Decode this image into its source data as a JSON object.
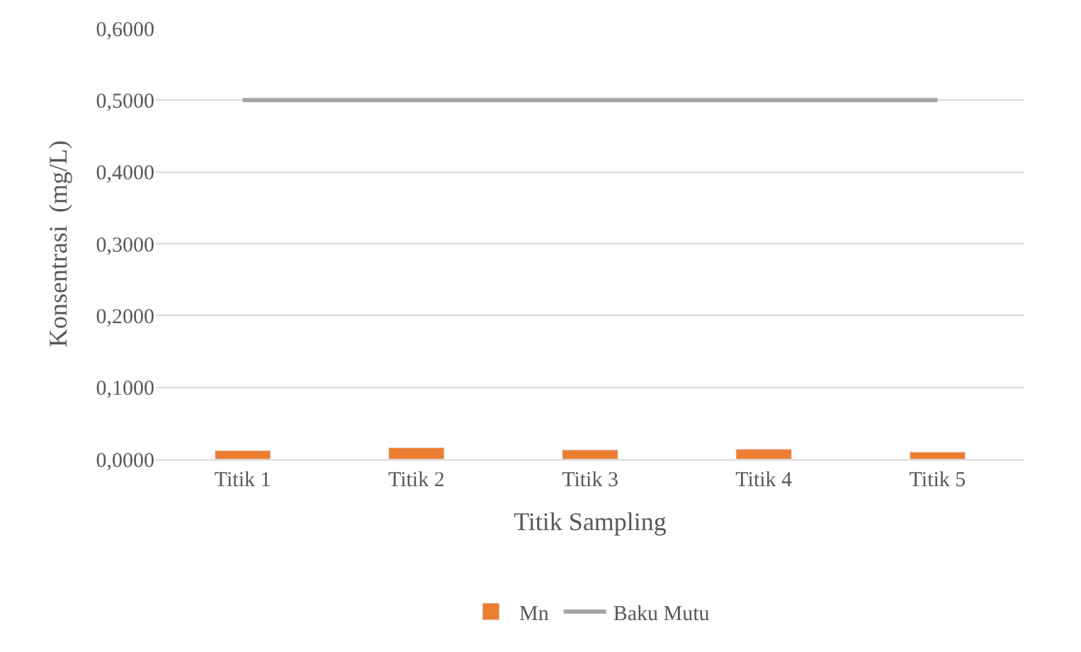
{
  "chart_data": {
    "type": "bar",
    "xlabel": "Titik Sampling",
    "ylabel": "Konsentrasi  (mg/L)",
    "categories": [
      "Titik 1",
      "Titik 2",
      "Titik 3",
      "Titik 4",
      "Titik 5"
    ],
    "series": [
      {
        "name": "Mn",
        "color": "#ed7d31",
        "values": [
          0.012,
          0.016,
          0.013,
          0.014,
          0.01
        ]
      },
      {
        "name": "Baku Mutu",
        "type": "line",
        "color": "#a5a5a5",
        "values": [
          0.5,
          0.5,
          0.5,
          0.5,
          0.5
        ]
      }
    ],
    "ylim": [
      0,
      0.6
    ],
    "yticks": [
      {
        "value": 0,
        "label": "0,0000"
      },
      {
        "value": 0.1,
        "label": "0,1000"
      },
      {
        "value": 0.2,
        "label": "0,2000"
      },
      {
        "value": 0.3,
        "label": "0,3000"
      },
      {
        "value": 0.4,
        "label": "0,4000"
      },
      {
        "value": 0.5,
        "label": "0,5000"
      },
      {
        "value": 0.6,
        "label": "0,6000"
      }
    ],
    "grid": "y",
    "legend": "bottom"
  }
}
